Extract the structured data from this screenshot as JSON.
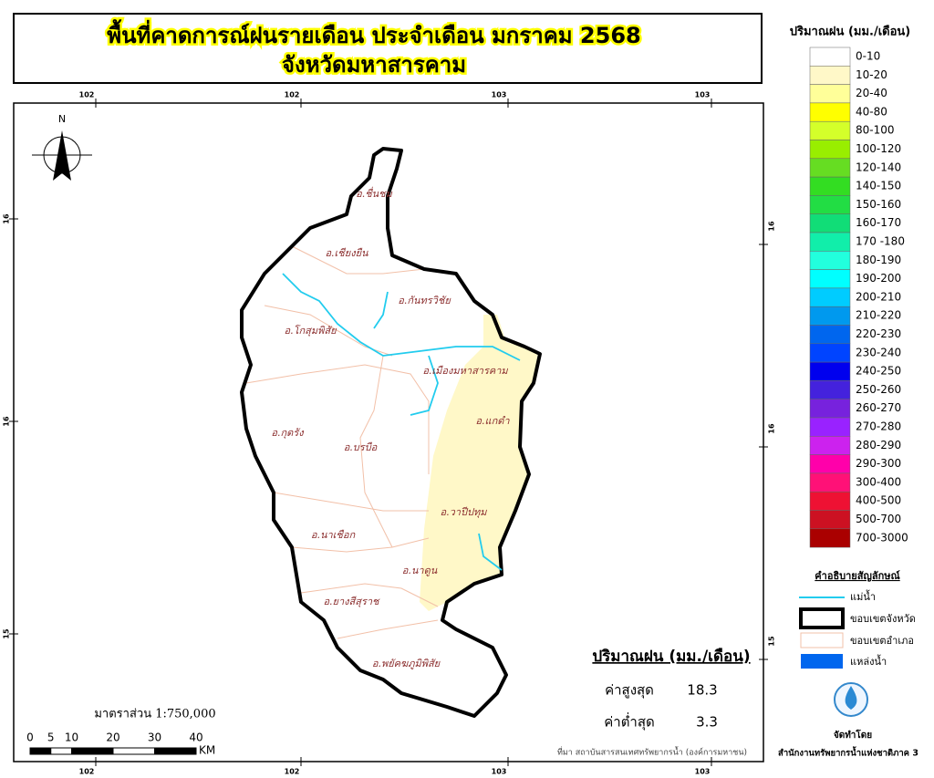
{
  "header": {
    "title": "พื้นที่คาดการณ์ฝนรายเดือน ประจำเดือน มกราคม 2568",
    "subtitle": "จังหวัดมหาสารคาม"
  },
  "grid": {
    "top": [
      "102",
      "102",
      "103",
      "103"
    ],
    "bottom": [
      "102",
      "102",
      "103",
      "103"
    ],
    "left": [
      "16",
      "16",
      "15"
    ],
    "right": [
      "16",
      "16",
      "15"
    ]
  },
  "north": "N",
  "legend": {
    "title": "ปริมาณฝน (มม./เดือน)",
    "classes": [
      {
        "label": "0-10",
        "color": "#ffffff"
      },
      {
        "label": "10-20",
        "color": "#fff8c8"
      },
      {
        "label": "20-40",
        "color": "#ffff99"
      },
      {
        "label": "40-80",
        "color": "#ffff00"
      },
      {
        "label": "80-100",
        "color": "#d4ff2a"
      },
      {
        "label": "100-120",
        "color": "#99ee00"
      },
      {
        "label": "120-140",
        "color": "#66dd22"
      },
      {
        "label": "140-150",
        "color": "#33dd22"
      },
      {
        "label": "150-160",
        "color": "#22dd44"
      },
      {
        "label": "160-170",
        "color": "#11dd77"
      },
      {
        "label": "170 -180",
        "color": "#11eeaa"
      },
      {
        "label": "180-190",
        "color": "#22ffdd"
      },
      {
        "label": "190-200",
        "color": "#00ffff"
      },
      {
        "label": "200-210",
        "color": "#00ccff"
      },
      {
        "label": "210-220",
        "color": "#0099ee"
      },
      {
        "label": "220-230",
        "color": "#0066ee"
      },
      {
        "label": "230-240",
        "color": "#0044ff"
      },
      {
        "label": "240-250",
        "color": "#0000ee"
      },
      {
        "label": "250-260",
        "color": "#4422dd"
      },
      {
        "label": "260-270",
        "color": "#7722dd"
      },
      {
        "label": "270-280",
        "color": "#9922ff"
      },
      {
        "label": "280-290",
        "color": "#cc22ee"
      },
      {
        "label": "290-300",
        "color": "#ff00aa"
      },
      {
        "label": "300-400",
        "color": "#ff1177"
      },
      {
        "label": "400-500",
        "color": "#ee1133"
      },
      {
        "label": "500-700",
        "color": "#cc1122"
      },
      {
        "label": "700-3000",
        "color": "#aa0000"
      }
    ]
  },
  "symbols": {
    "title": "คำอธิบายสัญลักษณ์",
    "items": [
      "แม่น้ำ",
      "ขอบเขตจังหวัด",
      "ขอบเขตอำเภอ",
      "แหล่งน้ำ"
    ]
  },
  "districts": [
    "อ.ชื่นชม",
    "อ.เชียงยืน",
    "อ.กันทรวิชัย",
    "อ.โกสุมพิสัย",
    "อ.เมืองมหาสารคาม",
    "อ.แกดำ",
    "อ.กุดรัง",
    "อ.บรบือ",
    "อ.วาปีปทุม",
    "อ.นาเชือก",
    "อ.นาดูน",
    "อ.ยางสีสุราช",
    "อ.พยัคฆภูมิพิสัย"
  ],
  "stats": {
    "title": "ปริมาณฝน (มม./เดือน)",
    "max_label": "ค่าสูงสุด",
    "max": 18.3,
    "min_label": "ค่าต่ำสุด",
    "min": 3.3
  },
  "scale": {
    "label": "มาตราส่วน 1:750,000",
    "ticks": [
      0,
      5,
      10,
      20,
      30,
      40
    ],
    "unit": "KM"
  },
  "source": "ที่มา  สถาบันสารสนเทศทรัพยากรน้ำ (องค์การมหาชน)",
  "credit": {
    "label": "จัดทำโดย",
    "org": "สำนักงานทรัพยากรน้ำแห่งชาติภาค 3"
  }
}
